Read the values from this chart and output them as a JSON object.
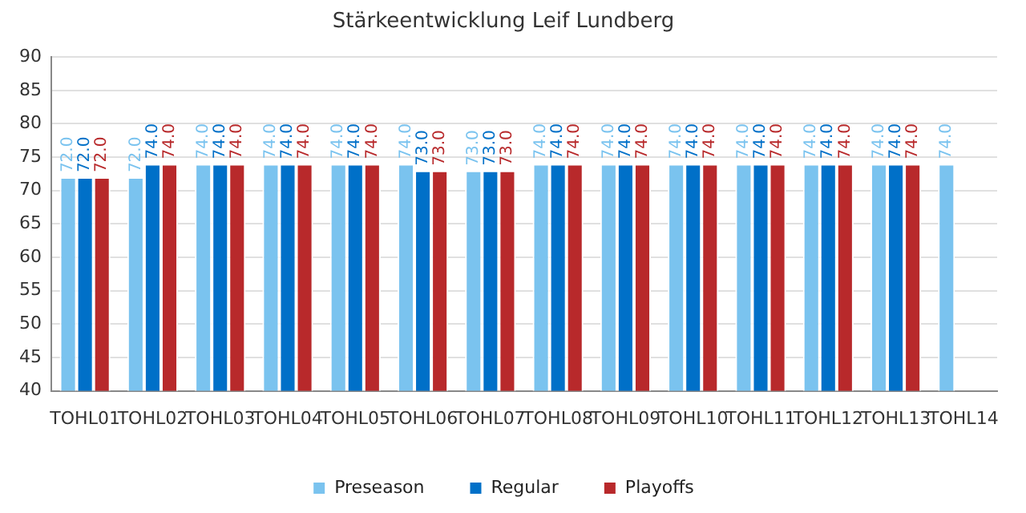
{
  "chart_data": {
    "type": "bar",
    "title": "Stärkeentwicklung Leif Lundberg",
    "categories": [
      "TOHL01",
      "TOHL02",
      "TOHL03",
      "TOHL04",
      "TOHL05",
      "TOHL06",
      "TOHL07",
      "TOHL08",
      "TOHL09",
      "TOHL10",
      "TOHL11",
      "TOHL12",
      "TOHL13",
      "TOHL14"
    ],
    "series": [
      {
        "name": "Preseason",
        "color": "#7ac3ef",
        "values": [
          72,
          72,
          74,
          74,
          74,
          74,
          73,
          74,
          74,
          74,
          74,
          74,
          74,
          74
        ],
        "value_labels": [
          "72.0",
          "72.0",
          "74.0",
          "74.0",
          "74.0",
          "74.0",
          "73.0",
          "74.0",
          "74.0",
          "74.0",
          "74.0",
          "74.0",
          "74.0",
          "74.0"
        ]
      },
      {
        "name": "Regular",
        "color": "#0070c8",
        "values": [
          72,
          74,
          74,
          74,
          74,
          73,
          73,
          74,
          74,
          74,
          74,
          74,
          74,
          null
        ],
        "value_labels": [
          "72.0",
          "74.0",
          "74.0",
          "74.0",
          "74.0",
          "73.0",
          "73.0",
          "74.0",
          "74.0",
          "74.0",
          "74.0",
          "74.0",
          "74.0",
          null
        ]
      },
      {
        "name": "Playoffs",
        "color": "#b8292b",
        "values": [
          72,
          74,
          74,
          74,
          74,
          73,
          73,
          74,
          74,
          74,
          74,
          74,
          74,
          null
        ],
        "value_labels": [
          "72.0",
          "74.0",
          "74.0",
          "74.0",
          "74.0",
          "73.0",
          "73.0",
          "74.0",
          "74.0",
          "74.0",
          "74.0",
          "74.0",
          "74.0",
          null
        ]
      }
    ],
    "ylim": [
      40,
      90
    ],
    "yticks": [
      40,
      45,
      50,
      55,
      60,
      65,
      70,
      75,
      80,
      85,
      90
    ],
    "grid": "y",
    "legend": "bottom"
  }
}
